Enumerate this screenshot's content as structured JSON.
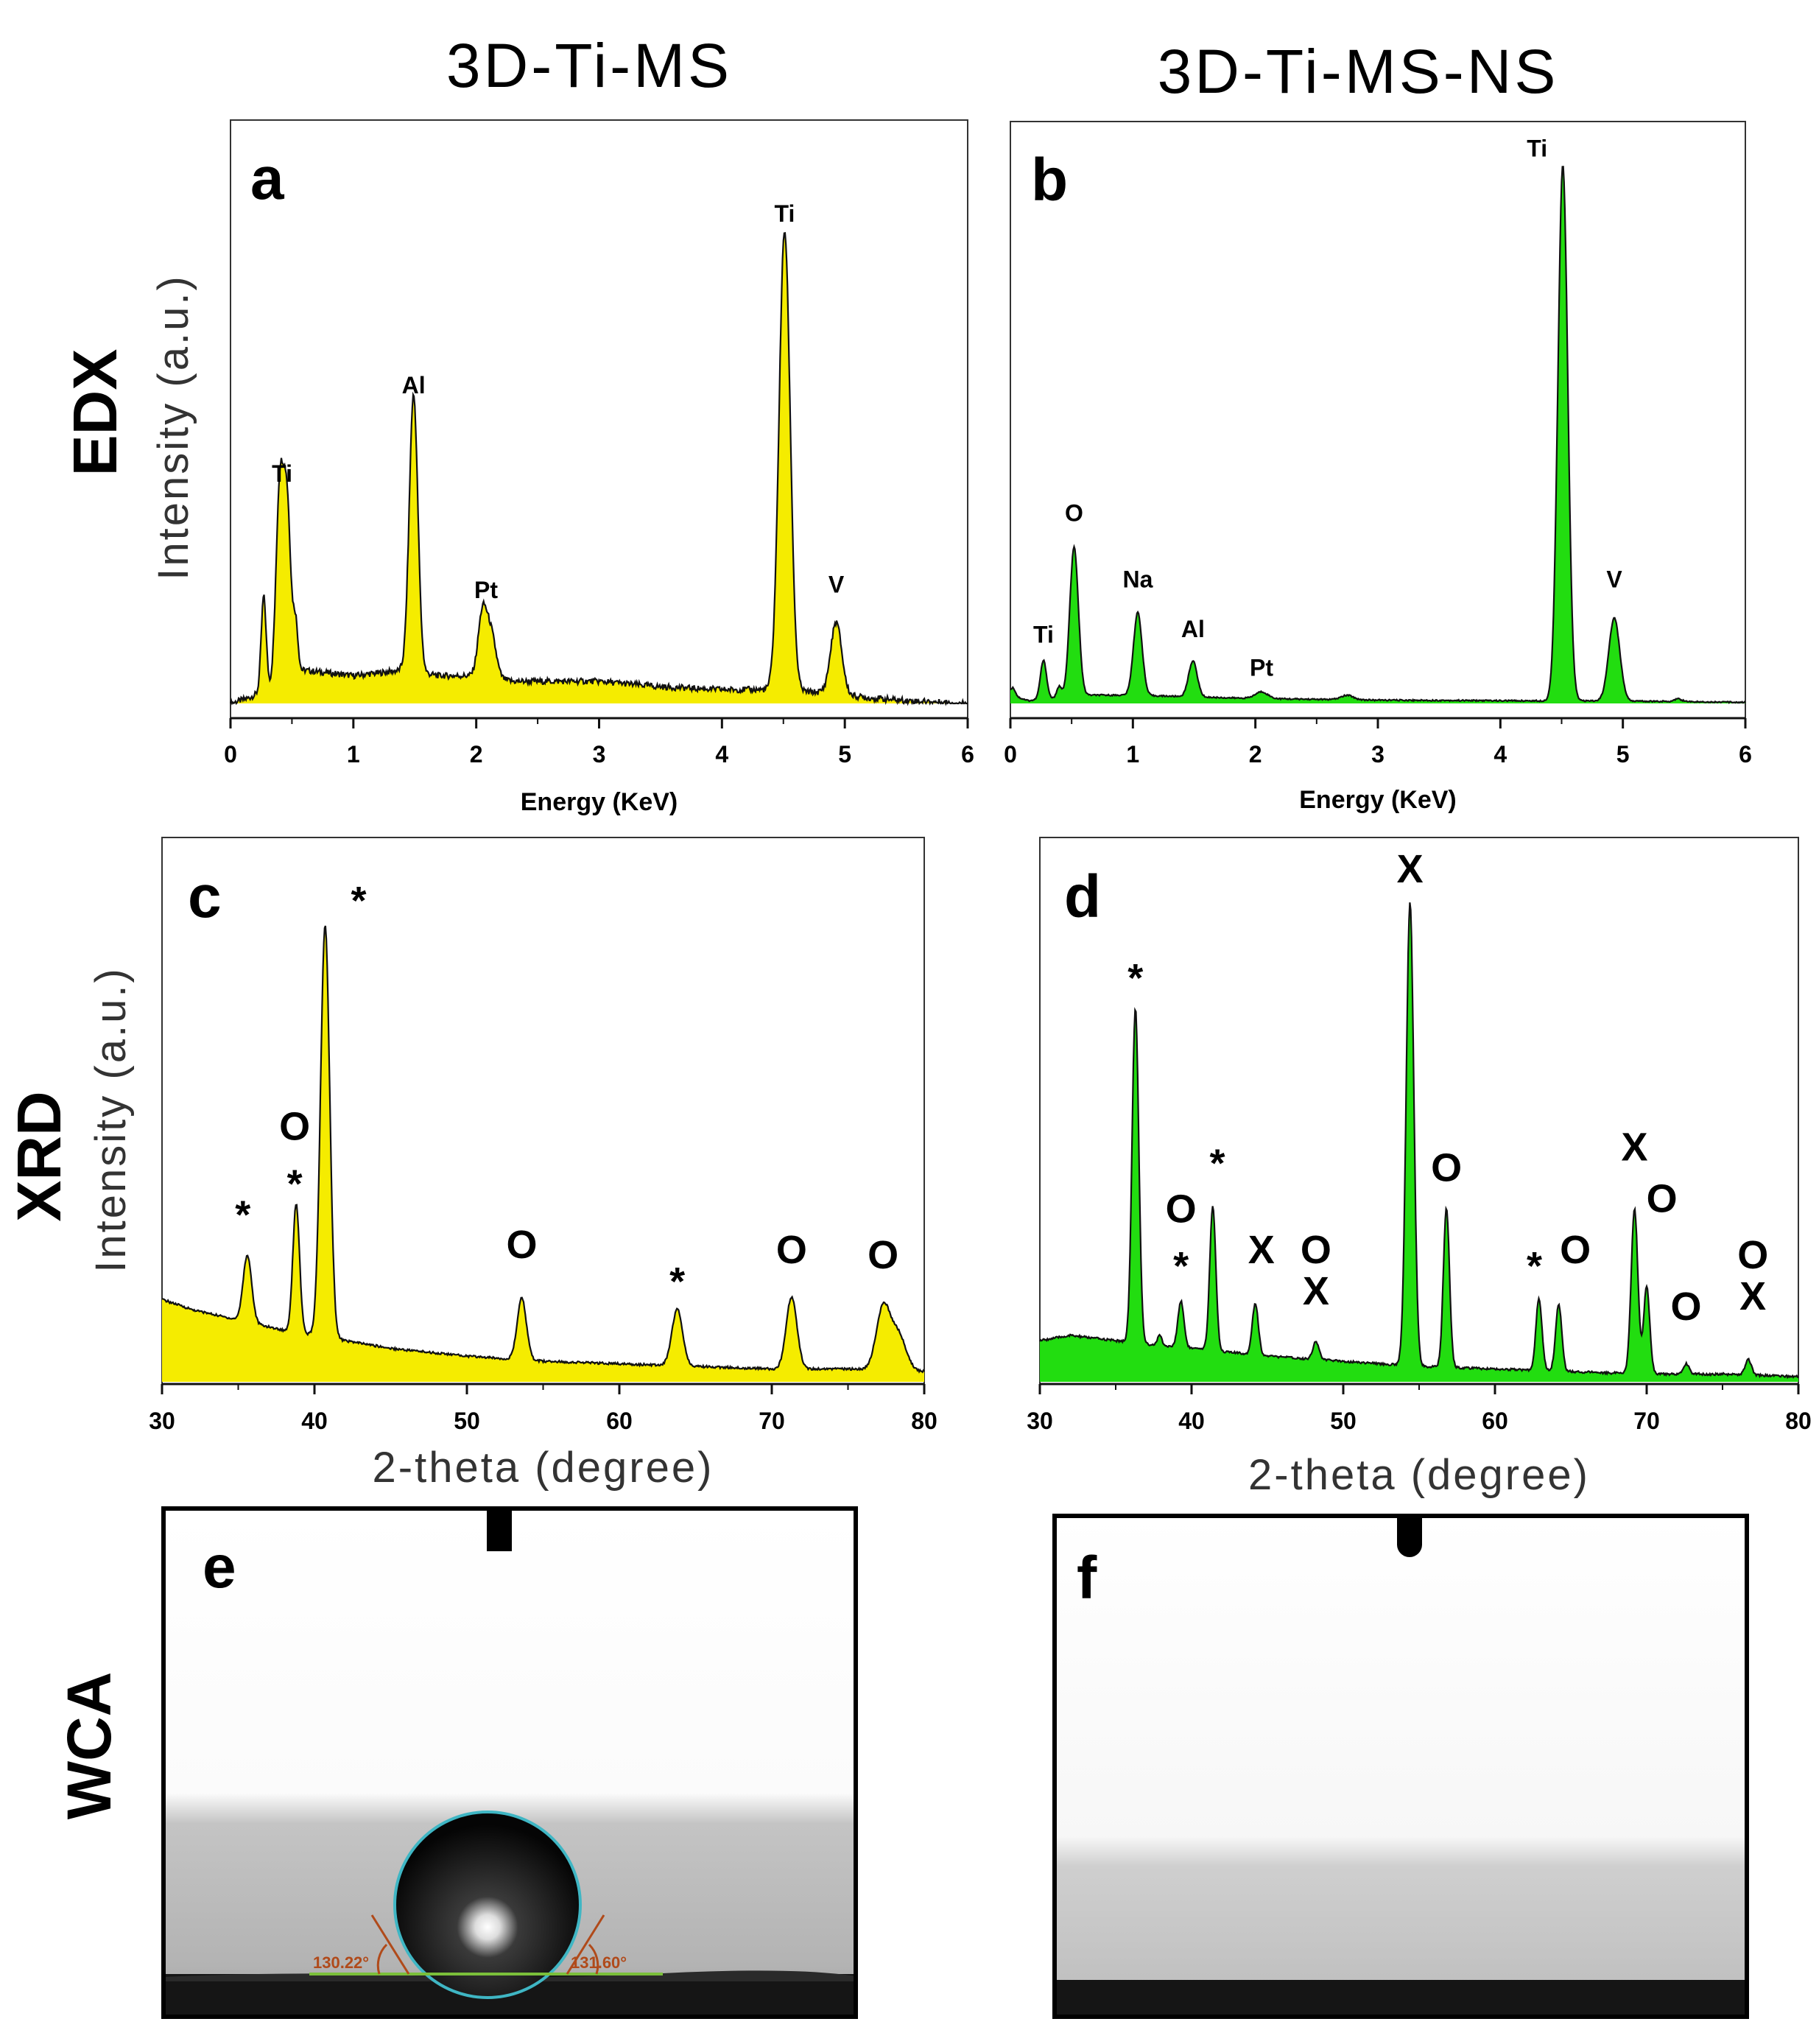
{
  "figure": {
    "column_titles": [
      "3D-Ti-MS",
      "3D-Ti-MS-NS"
    ],
    "row_titles": [
      "EDX",
      "XRD",
      "WCA"
    ]
  },
  "colors": {
    "yellow": "#f5ec00",
    "green": "#22dd10",
    "line": "#111111"
  },
  "chart_data": [
    {
      "panel": "a",
      "type": "area",
      "technique": "EDX",
      "sample": "3D-Ti-MS",
      "xlabel": "Energy (KeV)",
      "ylabel": "Intensity (a.u.)",
      "xlim": [
        0,
        6
      ],
      "ylim": [
        0,
        100
      ],
      "xticks": [
        "0",
        "1",
        "2",
        "3",
        "4",
        "5",
        "6"
      ],
      "fill_color": "#f5ec00",
      "baseline": [
        [
          0,
          0
        ],
        [
          0.15,
          1
        ],
        [
          0.6,
          6
        ],
        [
          1.0,
          5
        ],
        [
          1.4,
          6
        ],
        [
          1.7,
          5
        ],
        [
          2.0,
          5
        ],
        [
          2.3,
          4
        ],
        [
          3.0,
          4
        ],
        [
          3.5,
          3
        ],
        [
          4.0,
          2.5
        ],
        [
          4.3,
          2.5
        ],
        [
          4.8,
          2
        ],
        [
          5.2,
          1
        ],
        [
          5.5,
          0.5
        ],
        [
          6,
          0
        ]
      ],
      "peaks": [
        {
          "x": 0.27,
          "h": 17,
          "w": 0.02
        },
        {
          "x": 0.4,
          "h": 34,
          "w": 0.03
        },
        {
          "x": 0.46,
          "h": 31,
          "w": 0.03
        },
        {
          "x": 0.53,
          "h": 9,
          "w": 0.02
        },
        {
          "x": 1.49,
          "h": 50,
          "w": 0.035
        },
        {
          "x": 2.05,
          "h": 11,
          "w": 0.035
        },
        {
          "x": 2.12,
          "h": 8,
          "w": 0.04
        },
        {
          "x": 4.51,
          "h": 83,
          "w": 0.045
        },
        {
          "x": 4.93,
          "h": 13,
          "w": 0.045
        }
      ],
      "annotations": [
        {
          "text": "Ti",
          "x": 0.42,
          "y": 40
        },
        {
          "text": "Al",
          "x": 1.49,
          "y": 56
        },
        {
          "text": "Pt",
          "x": 2.08,
          "y": 19
        },
        {
          "text": "Ti",
          "x": 4.51,
          "y": 87
        },
        {
          "text": "V",
          "x": 4.93,
          "y": 20
        }
      ]
    },
    {
      "panel": "b",
      "type": "area",
      "technique": "EDX",
      "sample": "3D-Ti-MS-NS",
      "xlabel": "Energy (KeV)",
      "ylabel": "",
      "xlim": [
        0,
        6
      ],
      "ylim": [
        0,
        100
      ],
      "xticks": [
        "0",
        "1",
        "2",
        "3",
        "4",
        "5",
        "6"
      ],
      "fill_color": "#22dd10",
      "baseline": [
        [
          0,
          1.5
        ],
        [
          0.15,
          0.5
        ],
        [
          0.6,
          1.5
        ],
        [
          1.0,
          1.5
        ],
        [
          1.8,
          1.0
        ],
        [
          2.3,
          0.8
        ],
        [
          3.0,
          0.6
        ],
        [
          4.0,
          0.5
        ],
        [
          5.2,
          0.4
        ],
        [
          6,
          0.2
        ]
      ],
      "peaks": [
        {
          "x": 0.02,
          "h": 1.5,
          "w": 0.02
        },
        {
          "x": 0.27,
          "h": 7,
          "w": 0.025
        },
        {
          "x": 0.4,
          "h": 2,
          "w": 0.02
        },
        {
          "x": 0.52,
          "h": 27,
          "w": 0.035
        },
        {
          "x": 1.04,
          "h": 15,
          "w": 0.035
        },
        {
          "x": 1.49,
          "h": 6.5,
          "w": 0.035
        },
        {
          "x": 2.05,
          "h": 1.2,
          "w": 0.05
        },
        {
          "x": 2.75,
          "h": 0.8,
          "w": 0.05
        },
        {
          "x": 4.51,
          "h": 97,
          "w": 0.04
        },
        {
          "x": 4.93,
          "h": 15,
          "w": 0.045
        },
        {
          "x": 5.45,
          "h": 0.5,
          "w": 0.03
        }
      ],
      "annotations": [
        {
          "text": "Ti",
          "x": 0.27,
          "y": 11
        },
        {
          "text": "O",
          "x": 0.52,
          "y": 33
        },
        {
          "text": "Na",
          "x": 1.04,
          "y": 21
        },
        {
          "text": "Al",
          "x": 1.49,
          "y": 12
        },
        {
          "text": "Pt",
          "x": 2.05,
          "y": 5
        },
        {
          "text": "Ti",
          "x": 4.3,
          "y": 99
        },
        {
          "text": "V",
          "x": 4.93,
          "y": 21
        }
      ]
    },
    {
      "panel": "c",
      "type": "area",
      "technique": "XRD",
      "sample": "3D-Ti-MS",
      "xlabel": "2-theta (degree)",
      "ylabel": "Intensity (a.u.)",
      "xlim": [
        30,
        80
      ],
      "ylim": [
        0,
        100
      ],
      "xticks": [
        "30",
        "40",
        "50",
        "60",
        "70",
        "80"
      ],
      "fill_color": "#f5ec00",
      "baseline": [
        [
          30,
          16
        ],
        [
          32,
          14
        ],
        [
          35,
          12
        ],
        [
          38,
          10
        ],
        [
          40,
          9
        ],
        [
          42,
          8
        ],
        [
          45,
          6.5
        ],
        [
          50,
          5
        ],
        [
          55,
          4
        ],
        [
          60,
          3.5
        ],
        [
          65,
          3
        ],
        [
          70,
          2.5
        ],
        [
          75,
          2.5
        ],
        [
          80,
          2
        ]
      ],
      "peaks": [
        {
          "x": 35.6,
          "h": 13,
          "w": 0.28
        },
        {
          "x": 38.8,
          "h": 25,
          "w": 0.22
        },
        {
          "x": 40.7,
          "h": 80,
          "w": 0.3
        },
        {
          "x": 53.6,
          "h": 12,
          "w": 0.3
        },
        {
          "x": 63.8,
          "h": 11,
          "w": 0.35
        },
        {
          "x": 71.3,
          "h": 14,
          "w": 0.35
        },
        {
          "x": 77.3,
          "h": 12,
          "w": 0.45
        },
        {
          "x": 78.3,
          "h": 7,
          "w": 0.5
        }
      ],
      "annotations": [
        {
          "text": "*",
          "x": 35.3,
          "y": 33
        },
        {
          "text": "O",
          "x": 38.7,
          "y": 47
        },
        {
          "text": "*",
          "x": 38.7,
          "y": 39
        },
        {
          "text": "*",
          "x": 42.9,
          "y": 94
        },
        {
          "text": "O",
          "x": 53.6,
          "y": 24
        },
        {
          "text": "*",
          "x": 63.8,
          "y": 20
        },
        {
          "text": "O",
          "x": 71.3,
          "y": 23
        },
        {
          "text": "O",
          "x": 77.3,
          "y": 22
        }
      ]
    },
    {
      "panel": "d",
      "type": "area",
      "technique": "XRD",
      "sample": "3D-Ti-MS-NS",
      "xlabel": "2-theta (degree)",
      "ylabel": "",
      "xlim": [
        30,
        80
      ],
      "ylim": [
        0,
        100
      ],
      "xticks": [
        "30",
        "40",
        "50",
        "60",
        "70",
        "80"
      ],
      "fill_color": "#22dd10",
      "baseline": [
        [
          30,
          8
        ],
        [
          32,
          9
        ],
        [
          35,
          8
        ],
        [
          38,
          7
        ],
        [
          40,
          6.5
        ],
        [
          45,
          5
        ],
        [
          50,
          4
        ],
        [
          55,
          3
        ],
        [
          60,
          2.5
        ],
        [
          65,
          2
        ],
        [
          70,
          1.5
        ],
        [
          75,
          1.5
        ],
        [
          80,
          1
        ]
      ],
      "peaks": [
        {
          "x": 36.3,
          "h": 65,
          "w": 0.22
        },
        {
          "x": 37.9,
          "h": 2,
          "w": 0.15
        },
        {
          "x": 39.3,
          "h": 9,
          "w": 0.2
        },
        {
          "x": 41.4,
          "h": 28,
          "w": 0.2
        },
        {
          "x": 44.2,
          "h": 10,
          "w": 0.2
        },
        {
          "x": 48.2,
          "h": 3.5,
          "w": 0.2
        },
        {
          "x": 54.4,
          "h": 90,
          "w": 0.25
        },
        {
          "x": 56.8,
          "h": 31,
          "w": 0.2
        },
        {
          "x": 62.9,
          "h": 14,
          "w": 0.2
        },
        {
          "x": 64.2,
          "h": 13,
          "w": 0.2
        },
        {
          "x": 69.2,
          "h": 32,
          "w": 0.22
        },
        {
          "x": 70.0,
          "h": 17,
          "w": 0.2
        },
        {
          "x": 72.6,
          "h": 2,
          "w": 0.2
        },
        {
          "x": 76.7,
          "h": 3,
          "w": 0.2
        }
      ],
      "annotations": [
        {
          "text": "X",
          "x": 54.4,
          "y": 97
        },
        {
          "text": "*",
          "x": 36.3,
          "y": 79
        },
        {
          "text": "O",
          "x": 39.3,
          "y": 31
        },
        {
          "text": "*",
          "x": 39.3,
          "y": 23
        },
        {
          "text": "*",
          "x": 41.7,
          "y": 43
        },
        {
          "text": "X",
          "x": 44.6,
          "y": 23
        },
        {
          "text": "O",
          "x": 48.2,
          "y": 23
        },
        {
          "text": "X",
          "x": 48.2,
          "y": 15
        },
        {
          "text": "O",
          "x": 56.8,
          "y": 39
        },
        {
          "text": "*",
          "x": 62.6,
          "y": 23
        },
        {
          "text": "O",
          "x": 65.3,
          "y": 23
        },
        {
          "text": "X",
          "x": 69.2,
          "y": 43
        },
        {
          "text": "O",
          "x": 71.0,
          "y": 33
        },
        {
          "text": "O",
          "x": 72.6,
          "y": 12
        },
        {
          "text": "O",
          "x": 77.0,
          "y": 22
        },
        {
          "text": "X",
          "x": 77.0,
          "y": 14
        }
      ]
    }
  ],
  "wca": {
    "panel_e": {
      "label": "e",
      "left_angle": "130.22°",
      "right_angle": "131.60°"
    },
    "panel_f": {
      "label": "f"
    }
  }
}
